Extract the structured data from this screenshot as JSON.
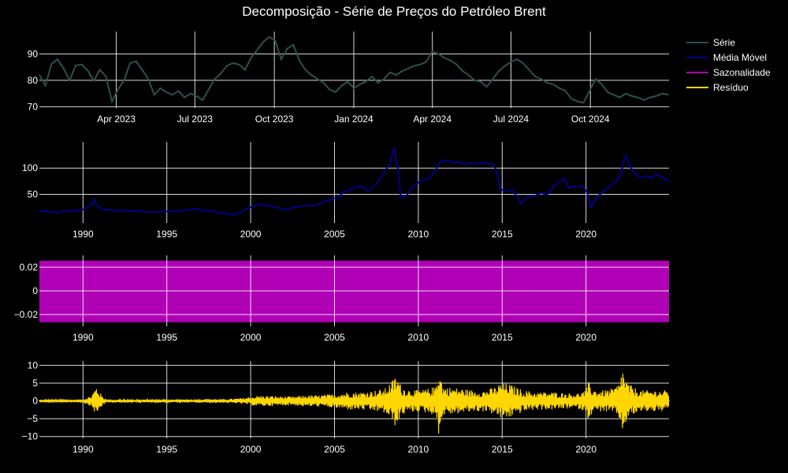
{
  "chart_data": {
    "title": "Decomposição - Série de Preços do Petróleo Brent",
    "legend": {
      "placement": "top-right",
      "items": [
        {
          "label": "Série",
          "color": "#2f4f4f"
        },
        {
          "label": "Média Móvel",
          "color": "#00008b"
        },
        {
          "label": "Sazonalidade",
          "color": "#b000b5"
        },
        {
          "label": "Resíduo",
          "color": "#ffd700"
        }
      ]
    },
    "panels": [
      {
        "name": "serie",
        "type": "line",
        "color": "#2f4f4f",
        "grid": true,
        "xlim": [
          "2023-01-02",
          "2024-12-31"
        ],
        "ylim": [
          69.5,
          98.5
        ],
        "x_ticks": [
          {
            "value": "2023-04-01",
            "label": "Apr 2023"
          },
          {
            "value": "2023-07-01",
            "label": "Jul 2023"
          },
          {
            "value": "2023-10-01",
            "label": "Oct 2023"
          },
          {
            "value": "2024-01-01",
            "label": "Jan 2024"
          },
          {
            "value": "2024-04-01",
            "label": "Apr 2024"
          },
          {
            "value": "2024-07-01",
            "label": "Jul 2024"
          },
          {
            "value": "2024-10-01",
            "label": "Oct 2024"
          }
        ],
        "y_ticks": [
          70,
          80,
          90
        ],
        "x": [
          "2023-01-02",
          "2023-01-09",
          "2023-01-16",
          "2023-01-23",
          "2023-01-30",
          "2023-02-06",
          "2023-02-13",
          "2023-02-20",
          "2023-02-27",
          "2023-03-06",
          "2023-03-13",
          "2023-03-20",
          "2023-03-27",
          "2023-04-03",
          "2023-04-10",
          "2023-04-17",
          "2023-04-24",
          "2023-05-01",
          "2023-05-08",
          "2023-05-15",
          "2023-05-22",
          "2023-05-29",
          "2023-06-05",
          "2023-06-12",
          "2023-06-19",
          "2023-06-26",
          "2023-07-03",
          "2023-07-10",
          "2023-07-17",
          "2023-07-24",
          "2023-07-31",
          "2023-08-07",
          "2023-08-14",
          "2023-08-21",
          "2023-08-28",
          "2023-09-04",
          "2023-09-11",
          "2023-09-18",
          "2023-09-25",
          "2023-10-02",
          "2023-10-09",
          "2023-10-16",
          "2023-10-23",
          "2023-10-30",
          "2023-11-06",
          "2023-11-13",
          "2023-11-20",
          "2023-11-27",
          "2023-12-04",
          "2023-12-11",
          "2023-12-18",
          "2023-12-25",
          "2024-01-01",
          "2024-01-08",
          "2024-01-15",
          "2024-01-22",
          "2024-01-29",
          "2024-02-05",
          "2024-02-12",
          "2024-02-19",
          "2024-02-26",
          "2024-03-04",
          "2024-03-11",
          "2024-03-18",
          "2024-03-25",
          "2024-04-01",
          "2024-04-08",
          "2024-04-15",
          "2024-04-22",
          "2024-04-29",
          "2024-05-06",
          "2024-05-13",
          "2024-05-20",
          "2024-05-27",
          "2024-06-03",
          "2024-06-10",
          "2024-06-17",
          "2024-06-24",
          "2024-07-01",
          "2024-07-08",
          "2024-07-15",
          "2024-07-22",
          "2024-07-29",
          "2024-08-05",
          "2024-08-12",
          "2024-08-19",
          "2024-08-26",
          "2024-09-02",
          "2024-09-09",
          "2024-09-16",
          "2024-09-23",
          "2024-09-30",
          "2024-10-07",
          "2024-10-14",
          "2024-10-21",
          "2024-10-28",
          "2024-11-04",
          "2024-11-11",
          "2024-11-18",
          "2024-11-25",
          "2024-12-02",
          "2024-12-09",
          "2024-12-16",
          "2024-12-23",
          "2024-12-30"
        ],
        "values": [
          82.1,
          78.0,
          86.2,
          88.0,
          84.5,
          80.0,
          85.6,
          86.0,
          83.7,
          79.8,
          84.0,
          81.5,
          72.0,
          76.5,
          80.0,
          86.5,
          87.2,
          84.0,
          80.5,
          74.5,
          77.0,
          75.5,
          74.5,
          76.0,
          73.5,
          75.0,
          74.0,
          72.5,
          76.5,
          80.5,
          82.5,
          85.5,
          86.5,
          86.0,
          84.0,
          88.5,
          91.5,
          94.5,
          96.5,
          95.0,
          88.0,
          92.0,
          93.5,
          87.5,
          84.0,
          82.0,
          80.5,
          79.0,
          76.5,
          75.5,
          78.0,
          79.5,
          77.0,
          78.5,
          79.5,
          81.5,
          79.0,
          80.5,
          83.0,
          82.0,
          83.5,
          84.5,
          85.5,
          86.0,
          87.0,
          91.0,
          90.0,
          88.5,
          87.5,
          86.0,
          83.5,
          82.0,
          80.0,
          79.5,
          77.5,
          80.5,
          83.5,
          85.5,
          87.0,
          88.0,
          86.5,
          84.0,
          81.5,
          80.5,
          79.0,
          78.5,
          77.0,
          76.0,
          73.0,
          72.0,
          71.5,
          76.0,
          80.5,
          78.5,
          75.5,
          74.5,
          73.5,
          75.0,
          74.0,
          73.5,
          72.5,
          73.5,
          74.0,
          75.0,
          74.5
        ]
      },
      {
        "name": "media-movel",
        "type": "line",
        "color": "#00008b",
        "grid": true,
        "xlim": [
          1987.4,
          2024.95
        ],
        "ylim": [
          -5,
          150
        ],
        "x_ticks": [
          1990,
          1995,
          2000,
          2005,
          2010,
          2015,
          2020
        ],
        "y_ticks": [
          50,
          100
        ],
        "x": [
          1987.4,
          1987.9,
          1988.5,
          1989.0,
          1989.5,
          1990.0,
          1990.5,
          1990.7,
          1990.8,
          1991.2,
          1991.7,
          1992.2,
          1992.7,
          1993.2,
          1993.7,
          1994.2,
          1994.7,
          1995.2,
          1995.7,
          1996.2,
          1996.7,
          1997.2,
          1997.7,
          1998.2,
          1998.7,
          1998.95,
          1999.5,
          1999.8,
          2000.3,
          2000.7,
          2001.2,
          2001.6,
          2001.9,
          2002.3,
          2002.8,
          2003.3,
          2003.8,
          2004.3,
          2004.8,
          2005.2,
          2005.6,
          2006.1,
          2006.6,
          2007.0,
          2007.5,
          2007.9,
          2008.3,
          2008.55,
          2008.8,
          2008.95,
          2009.3,
          2009.7,
          2010.2,
          2010.6,
          2011.0,
          2011.3,
          2011.7,
          2012.1,
          2012.4,
          2012.8,
          2013.2,
          2013.6,
          2014.0,
          2014.4,
          2014.6,
          2014.9,
          2015.2,
          2015.6,
          2015.9,
          2016.1,
          2016.5,
          2016.9,
          2017.3,
          2017.7,
          2018.2,
          2018.7,
          2018.95,
          2019.3,
          2019.8,
          2020.05,
          2020.3,
          2020.6,
          2021.0,
          2021.4,
          2021.8,
          2022.1,
          2022.25,
          2022.4,
          2022.6,
          2022.9,
          2023.2,
          2023.6,
          2023.9,
          2024.2,
          2024.6,
          2024.95
        ],
        "values": [
          18,
          17,
          15,
          18,
          19,
          21,
          30,
          40,
          28,
          21,
          20,
          19,
          18,
          18,
          16,
          16,
          17,
          17,
          18,
          20,
          22,
          19,
          19,
          14,
          12,
          11,
          17,
          23,
          29,
          31,
          27,
          25,
          20,
          23,
          26,
          29,
          28,
          35,
          40,
          45,
          55,
          62,
          65,
          57,
          70,
          88,
          110,
          138,
          95,
          45,
          48,
          65,
          77,
          78,
          95,
          112,
          115,
          110,
          112,
          107,
          110,
          108,
          110,
          108,
          100,
          60,
          55,
          58,
          45,
          32,
          45,
          47,
          52,
          50,
          70,
          80,
          62,
          65,
          65,
          55,
          25,
          43,
          55,
          65,
          75,
          90,
          115,
          125,
          105,
          90,
          82,
          85,
          80,
          88,
          82,
          75
        ]
      },
      {
        "name": "sazonalidade",
        "type": "area",
        "color": "#b000b5",
        "grid": true,
        "xlim": [
          1987.4,
          2024.95
        ],
        "ylim": [
          -0.03,
          0.03
        ],
        "x_ticks": [
          1990,
          1995,
          2000,
          2005,
          2010,
          2015,
          2020
        ],
        "y_ticks": [
          -0.02,
          0,
          0.02
        ],
        "y_tick_labels": [
          "−0.02",
          "0",
          "0.02"
        ],
        "band": [
          -0.0265,
          0.0255
        ]
      },
      {
        "name": "residuo",
        "type": "line",
        "color": "#ffd700",
        "grid": true,
        "xlim": [
          1987.4,
          2024.95
        ],
        "ylim": [
          -10.5,
          11.2
        ],
        "x_ticks": [
          1990,
          1995,
          2000,
          2005,
          2010,
          2015,
          2020
        ],
        "y_ticks": [
          -10,
          -5,
          0,
          5,
          10
        ],
        "y_tick_labels": [
          "−10",
          "−5",
          "0",
          "5",
          "10"
        ],
        "x": [
          1987.4,
          1988.0,
          1989.0,
          1990.0,
          1990.5,
          1990.8,
          1991.0,
          1991.2,
          1991.5,
          1992.5,
          1994.0,
          1995.5,
          1996.5,
          1997.5,
          1998.5,
          1999.5,
          2000.0,
          2000.5,
          2001.5,
          2002.5,
          2003.2,
          2004.0,
          2005.0,
          2005.8,
          2006.5,
          2007.5,
          2008.0,
          2008.4,
          2008.6,
          2008.8,
          2009.0,
          2009.5,
          2010.0,
          2010.5,
          2011.0,
          2011.2,
          2011.5,
          2012.0,
          2012.6,
          2013.3,
          2014.0,
          2014.6,
          2014.9,
          2015.3,
          2015.8,
          2016.3,
          2017.0,
          2018.0,
          2018.9,
          2019.5,
          2020.0,
          2020.15,
          2020.3,
          2020.6,
          2021.0,
          2021.6,
          2022.0,
          2022.15,
          2022.3,
          2022.5,
          2022.8,
          2023.3,
          2023.8,
          2024.3,
          2024.95
        ],
        "amplitudes": [
          0.4,
          0.3,
          0.3,
          0.5,
          1.5,
          4.2,
          2.5,
          1.0,
          0.5,
          0.3,
          0.3,
          0.3,
          0.5,
          0.6,
          0.5,
          0.8,
          1.2,
          1.5,
          1.4,
          1.2,
          1.6,
          1.6,
          2.0,
          2.5,
          2.5,
          3.0,
          3.5,
          5.5,
          7.0,
          6.5,
          4.0,
          3.2,
          3.0,
          3.4,
          4.0,
          9.5,
          4.0,
          3.8,
          3.5,
          3.0,
          3.0,
          4.0,
          5.0,
          5.0,
          4.0,
          3.0,
          2.5,
          2.5,
          2.2,
          2.2,
          3.0,
          5.5,
          4.0,
          3.0,
          3.0,
          3.5,
          5.0,
          10.0,
          7.0,
          5.0,
          4.0,
          3.0,
          3.0,
          3.0,
          3.0
        ]
      }
    ]
  }
}
